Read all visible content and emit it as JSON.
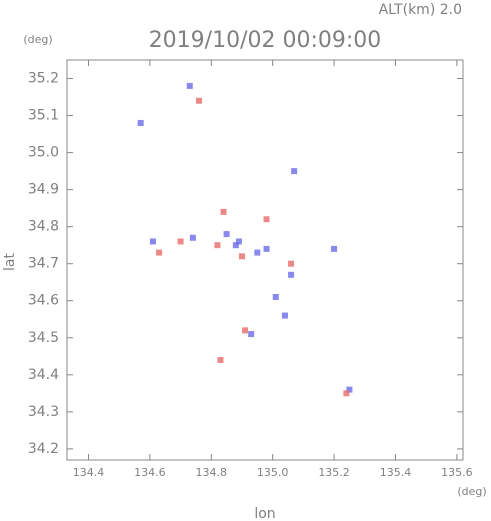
{
  "chart_data": {
    "type": "scatter",
    "title": "2019/10/02 00:09:00",
    "subtitle": "ALT(km) 2.0",
    "x_label": "lon",
    "y_label": "lat",
    "x_unit": "(deg)",
    "y_unit": "(deg)",
    "xlim": [
      134.33,
      135.62
    ],
    "ylim": [
      34.17,
      35.25
    ],
    "xticks": [
      134.4,
      134.6,
      134.8,
      {
        "value": 135,
        "label": "135.0"
      },
      135.2,
      135.4,
      135.6
    ],
    "yticks": [
      34.2,
      34.3,
      34.4,
      34.5,
      34.6,
      34.7,
      34.8,
      34.9,
      {
        "value": 35,
        "label": "35.0"
      },
      35.1,
      35.2
    ],
    "series": [
      {
        "color": "#6a6ae8",
        "x": [
          134.73,
          134.57,
          135.07,
          135.2,
          134.89,
          134.98,
          135.06,
          135.01,
          134.93,
          134.88,
          134.85,
          135.25,
          134.61,
          135.04,
          134.74,
          134.95
        ],
        "values": [
          35.18,
          35.08,
          34.95,
          34.74,
          34.76,
          34.74,
          34.67,
          34.61,
          34.51,
          34.75,
          34.78,
          34.36,
          34.76,
          34.56,
          34.77,
          34.73
        ]
      },
      {
        "color": "#e86a6a",
        "x": [
          134.84,
          134.7,
          134.82,
          134.9,
          134.98,
          134.91,
          135.24,
          135.06,
          134.76,
          134.63,
          134.83
        ],
        "values": [
          34.84,
          34.76,
          34.75,
          34.72,
          34.82,
          34.52,
          34.35,
          34.7,
          35.14,
          34.73,
          34.44
        ]
      }
    ]
  }
}
